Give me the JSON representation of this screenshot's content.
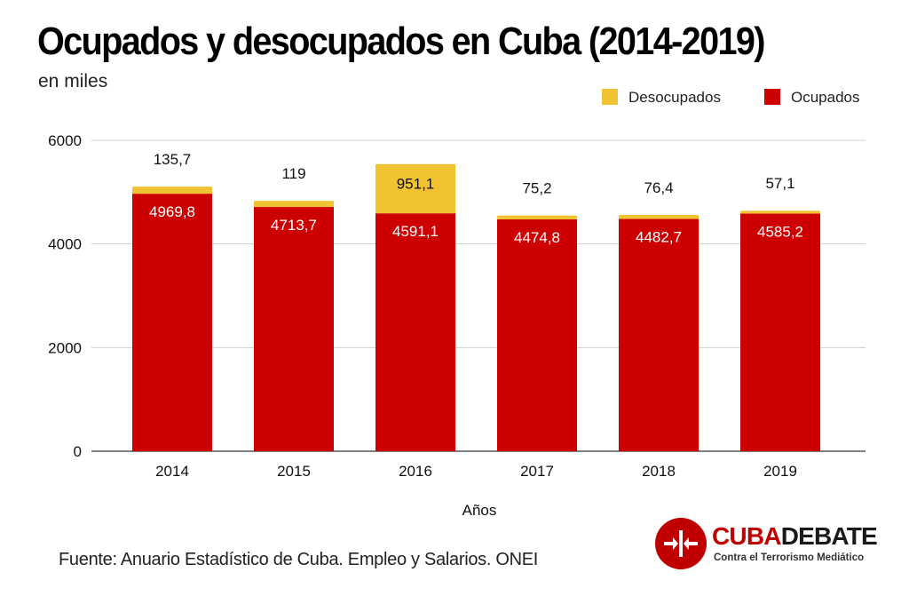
{
  "page": {
    "title": "Ocupados  y desocupados en Cuba (2014-2019)",
    "subtitle": "en miles",
    "source": "Fuente: Anuario Estadístico de Cuba. Empleo y Salarios. ONEI"
  },
  "logo": {
    "word_cuba": "CUBA",
    "word_debate": "DEBATE",
    "tagline": "Contra el Terrorismo Mediático",
    "color": "#c00000"
  },
  "chart_data": {
    "type": "bar",
    "stacked": true,
    "categories": [
      "2014",
      "2015",
      "2016",
      "2017",
      "2018",
      "2019"
    ],
    "series": [
      {
        "name": "Ocupados",
        "color": "#cc0000",
        "values": [
          4969.8,
          4713.7,
          4591.1,
          4474.8,
          4482.7,
          4585.2
        ],
        "labels": [
          "4969,8",
          "4713,7",
          "4591,1",
          "4474,8",
          "4482,7",
          "4585,2"
        ]
      },
      {
        "name": "Desocupados",
        "color": "#f1c232",
        "values": [
          135.7,
          119,
          951.1,
          75.2,
          76.4,
          57.1
        ],
        "labels": [
          "135,7",
          "119",
          "951,1",
          "75,2",
          "76,4",
          "57,1"
        ]
      }
    ],
    "xlabel": "Años",
    "ylabel": "",
    "ylim": [
      0,
      6000
    ],
    "yticks": [
      0,
      2000,
      4000,
      6000
    ],
    "grid": true,
    "legend": "top-right",
    "legend_order": [
      "Desocupados",
      "Ocupados"
    ]
  }
}
